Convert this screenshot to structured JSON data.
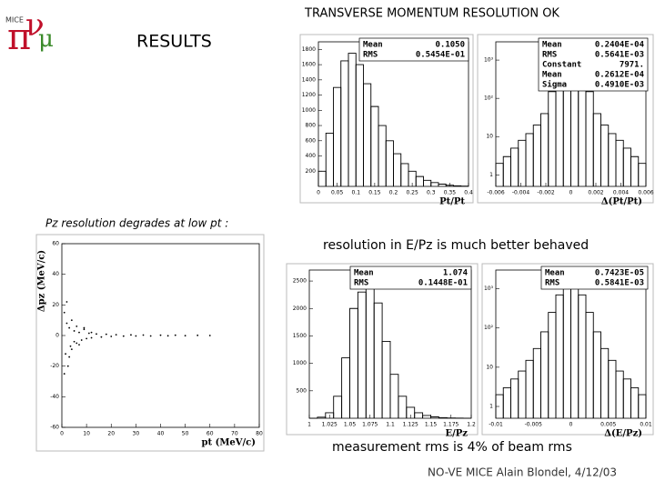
{
  "header": {
    "logo": "MICE",
    "title": "TRANSVERSE MOMENTUM RESOLUTION OK",
    "section": "RESULTS"
  },
  "notes": {
    "pz": "Pz resolution degrades at low pt :",
    "ep": "resolution in E/Pz is much better behaved",
    "rms": "measurement rms is 4% of beam rms"
  },
  "footer": "NO-VE  MICE  Alain Blondel, 4/12/03",
  "chart_data": [
    {
      "type": "histogram",
      "x_label": "Pt/Pt",
      "stats": [
        {
          "label": "Mean",
          "value": "0.1050"
        },
        {
          "label": "RMS",
          "value": "0.5454E-01"
        }
      ],
      "xlim": [
        0,
        0.4
      ],
      "ylim": [
        0,
        1900
      ],
      "xticks": [
        0,
        0.05,
        0.1,
        0.15,
        0.2,
        0.25,
        0.3,
        0.35,
        0.4
      ],
      "yticks": [
        200,
        400,
        600,
        800,
        1000,
        1200,
        1400,
        1600,
        1800
      ],
      "bins": [
        0,
        0.02,
        0.04,
        0.06,
        0.08,
        0.1,
        0.12,
        0.14,
        0.16,
        0.18,
        0.2,
        0.22,
        0.24,
        0.26,
        0.28,
        0.3,
        0.32,
        0.34,
        0.36,
        0.38,
        0.4
      ],
      "values": [
        200,
        700,
        1300,
        1650,
        1750,
        1600,
        1350,
        1050,
        800,
        600,
        430,
        300,
        200,
        130,
        80,
        50,
        30,
        15,
        8,
        4
      ],
      "color": "#000000"
    },
    {
      "type": "histogram",
      "x_label": "Δ(Pt/Pt)",
      "log_y": true,
      "stats": [
        {
          "label": "Mean",
          "value": "0.2404E-04"
        },
        {
          "label": "RMS",
          "value": "0.5641E-03"
        },
        {
          "label": "Constant",
          "value": "7971."
        },
        {
          "label": "Mean",
          "value": "0.2612E-04"
        },
        {
          "label": "Sigma",
          "value": "0.4910E-03"
        }
      ],
      "xlim": [
        -0.006,
        0.006
      ],
      "ylim": [
        0.5,
        3000
      ],
      "xticks": [
        -0.006,
        -0.004,
        -0.002,
        0,
        0.002,
        0.004,
        0.006
      ],
      "yticks": [
        1,
        {
          "value": 10,
          "label": "10"
        },
        {
          "value": 100,
          "label": "10²"
        },
        {
          "value": 1000,
          "label": "10³"
        }
      ],
      "bins": [
        -0.006,
        -0.0054,
        -0.0048,
        -0.0042,
        -0.0036,
        -0.003,
        -0.0024,
        -0.0018,
        -0.0012,
        -0.0006,
        0,
        0.0006,
        0.0012,
        0.0018,
        0.0024,
        0.003,
        0.0036,
        0.0042,
        0.0048,
        0.0054,
        0.006
      ],
      "values": [
        2,
        3,
        5,
        8,
        12,
        20,
        40,
        150,
        600,
        1200,
        1200,
        600,
        150,
        40,
        20,
        12,
        8,
        5,
        3,
        2
      ],
      "color": "#000000"
    },
    {
      "type": "scatter",
      "x_label": "pt (MeV/c)",
      "y_label": "Δpz (MeV/c)",
      "xlim": [
        0,
        80
      ],
      "ylim": [
        -60,
        60
      ],
      "xticks": [
        0,
        10,
        20,
        30,
        40,
        50,
        60,
        70,
        80
      ],
      "yticks": [
        -60,
        -40,
        -20,
        0,
        20,
        40,
        60
      ],
      "x": [
        1,
        1.5,
        2,
        2.5,
        3,
        3.5,
        4,
        5,
        5,
        6,
        6,
        7,
        8,
        9,
        10,
        11,
        12,
        14,
        16,
        18,
        20,
        22,
        25,
        28,
        30,
        33,
        36,
        40,
        43,
        46,
        50,
        55,
        60,
        1,
        2,
        3,
        4,
        7,
        9,
        12
      ],
      "y": [
        15,
        -12,
        8,
        -20,
        5,
        -7,
        10,
        3,
        -4,
        6,
        -5,
        2,
        -3,
        4,
        -2,
        1.5,
        -1.5,
        1,
        -1,
        0.8,
        -0.6,
        0.5,
        -0.4,
        0.4,
        -0.3,
        0.3,
        -0.3,
        0.2,
        -0.2,
        0.2,
        -0.1,
        0.1,
        0,
        -25,
        22,
        -14,
        -9,
        -6,
        5,
        2
      ],
      "color": "#000000"
    },
    {
      "type": "histogram",
      "x_label": "E/Pz",
      "stats": [
        {
          "label": "Mean",
          "value": "1.074"
        },
        {
          "label": "RMS",
          "value": "0.1448E-01"
        }
      ],
      "xlim": [
        1,
        1.2
      ],
      "ylim": [
        0,
        2700
      ],
      "xticks": [
        1,
        1.025,
        1.05,
        1.075,
        1.1,
        1.125,
        1.15,
        1.175,
        1.2
      ],
      "yticks": [
        500,
        1000,
        1500,
        2000,
        2500
      ],
      "bins": [
        1,
        1.01,
        1.02,
        1.03,
        1.04,
        1.05,
        1.06,
        1.07,
        1.08,
        1.09,
        1.1,
        1.11,
        1.12,
        1.13,
        1.14,
        1.15,
        1.16,
        1.17,
        1.18,
        1.19,
        1.2
      ],
      "values": [
        0,
        20,
        100,
        400,
        1100,
        2000,
        2300,
        2400,
        2100,
        1400,
        800,
        400,
        200,
        100,
        50,
        25,
        12,
        6,
        3,
        1
      ],
      "color": "#000000"
    },
    {
      "type": "histogram",
      "x_label": "Δ(E/Pz)",
      "log_y": true,
      "stats": [
        {
          "label": "Mean",
          "value": "0.7423E-05"
        },
        {
          "label": "RMS",
          "value": "0.5841E-03"
        }
      ],
      "xlim": [
        -0.01,
        0.01
      ],
      "ylim": [
        0.5,
        3000
      ],
      "xticks": [
        -0.01,
        -0.005,
        0,
        0.005,
        0.01
      ],
      "yticks": [
        1,
        {
          "value": 10,
          "label": "10"
        },
        {
          "value": 100,
          "label": "10²"
        },
        {
          "value": 1000,
          "label": "10³"
        }
      ],
      "bins": [
        -0.01,
        -0.009,
        -0.008,
        -0.007,
        -0.006,
        -0.005,
        -0.004,
        -0.003,
        -0.002,
        -0.001,
        0,
        0.001,
        0.002,
        0.003,
        0.004,
        0.005,
        0.006,
        0.007,
        0.008,
        0.009,
        0.01
      ],
      "values": [
        2,
        3,
        5,
        8,
        15,
        30,
        80,
        250,
        700,
        1100,
        1100,
        700,
        250,
        80,
        30,
        15,
        8,
        5,
        3,
        2
      ],
      "color": "#000000"
    }
  ]
}
